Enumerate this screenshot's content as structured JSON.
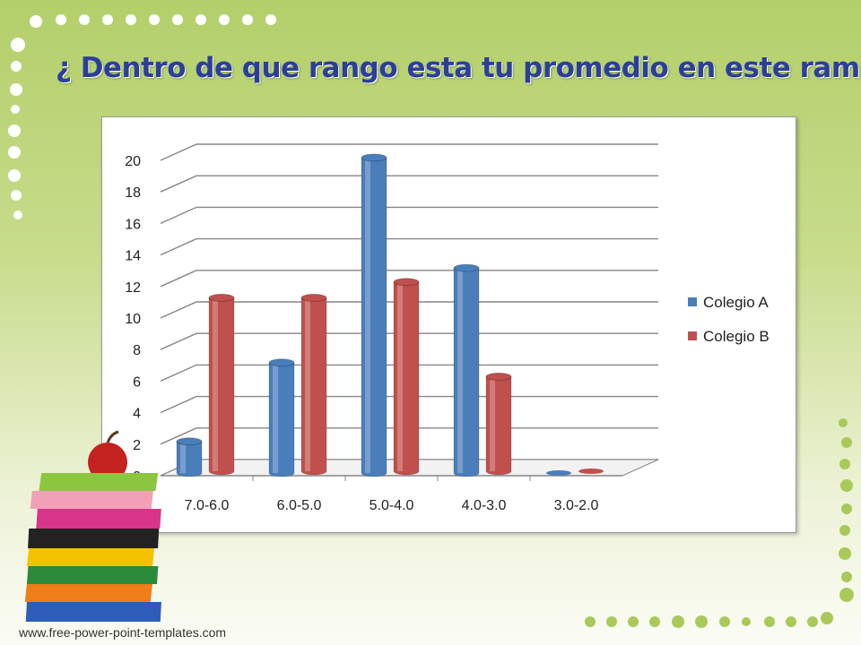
{
  "slide": {
    "title": "¿ Dentro de que rango esta tu promedio en este ramo?",
    "footer": "www.free-power-point-templates.com"
  },
  "colors": {
    "series_a": "#4a7ebb",
    "series_b": "#c0504d",
    "title": "#2c3f98"
  },
  "decorations": [
    "dots-border",
    "book-stack-with-apple"
  ],
  "chart_data": {
    "type": "bar",
    "style": "3d-cylinder",
    "title": "",
    "xlabel": "",
    "ylabel": "",
    "categories": [
      "7.0-6.0",
      "6.0-5.0",
      "5.0-4.0",
      "4.0-3.0",
      "3.0-2.0"
    ],
    "series": [
      {
        "name": "Colegio A",
        "values": [
          2,
          7,
          20,
          13,
          0
        ]
      },
      {
        "name": "Colegio B",
        "values": [
          11,
          11,
          12,
          6,
          0
        ]
      }
    ],
    "ylim": [
      0,
      20
    ],
    "yticks": [
      0,
      2,
      4,
      6,
      8,
      10,
      12,
      14,
      16,
      18,
      20
    ],
    "grid": true,
    "legend": "right"
  }
}
